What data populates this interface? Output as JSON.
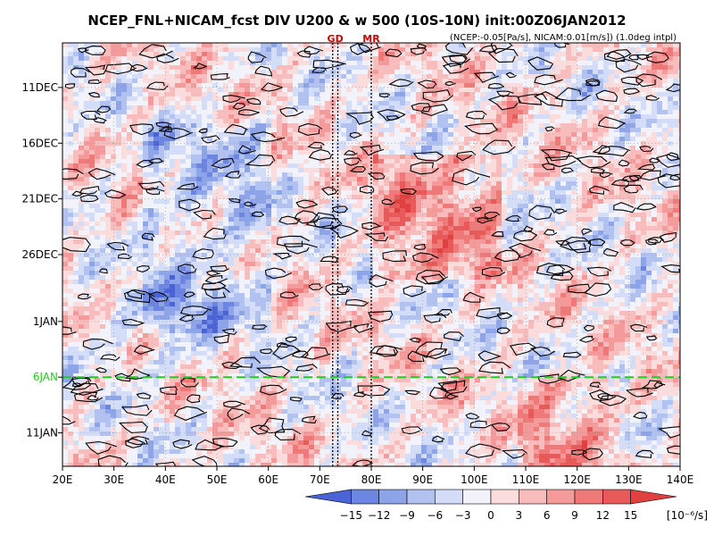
{
  "chart_data": {
    "type": "heatmap",
    "title": "NCEP_FNL+NICAM_fcst DIV U200 & w 500 (10S-10N) init:00Z06JAN2012",
    "subtitle": "(NCEP:-0.05[Pa/s], NICAM:0.01[m/s]) (1.0deg intpl)",
    "xlabel": "",
    "ylabel": "",
    "x_ticks": [
      "20E",
      "30E",
      "40E",
      "50E",
      "60E",
      "70E",
      "80E",
      "90E",
      "100E",
      "110E",
      "120E",
      "130E",
      "140E"
    ],
    "xlim": [
      20,
      140
    ],
    "y_ticks": [
      "11DEC",
      "16DEC",
      "21DEC",
      "26DEC",
      "1JAN",
      "6JAN",
      "11JAN"
    ],
    "y_tick_days": [
      0,
      5,
      10,
      15,
      21,
      26,
      31
    ],
    "ylim_days": [
      -4,
      34
    ],
    "init_label": "6JAN",
    "init_day": 26,
    "markers": [
      {
        "label": "GD",
        "lon": [
          72.5,
          73.5
        ]
      },
      {
        "label": "MR",
        "lon": [
          80
        ]
      }
    ],
    "colorbar": {
      "levels": [
        "-15",
        "-12",
        "-9",
        "-6",
        "-3",
        "0",
        "3",
        "6",
        "9",
        "12",
        "15"
      ],
      "units": "[10⁻⁶/s]",
      "colors": [
        "#4a64d6",
        "#6b85e0",
        "#8ea4e8",
        "#b1c2f0",
        "#d3ddf7",
        "#f2f2fa",
        "#fbdcdc",
        "#f8bcbc",
        "#f49a9a",
        "#ef7878",
        "#e85a5a",
        "#e14040"
      ]
    },
    "colors": {
      "init_line": "#22cc22",
      "marker_text": "#cc0000",
      "contour": "#000000"
    }
  }
}
